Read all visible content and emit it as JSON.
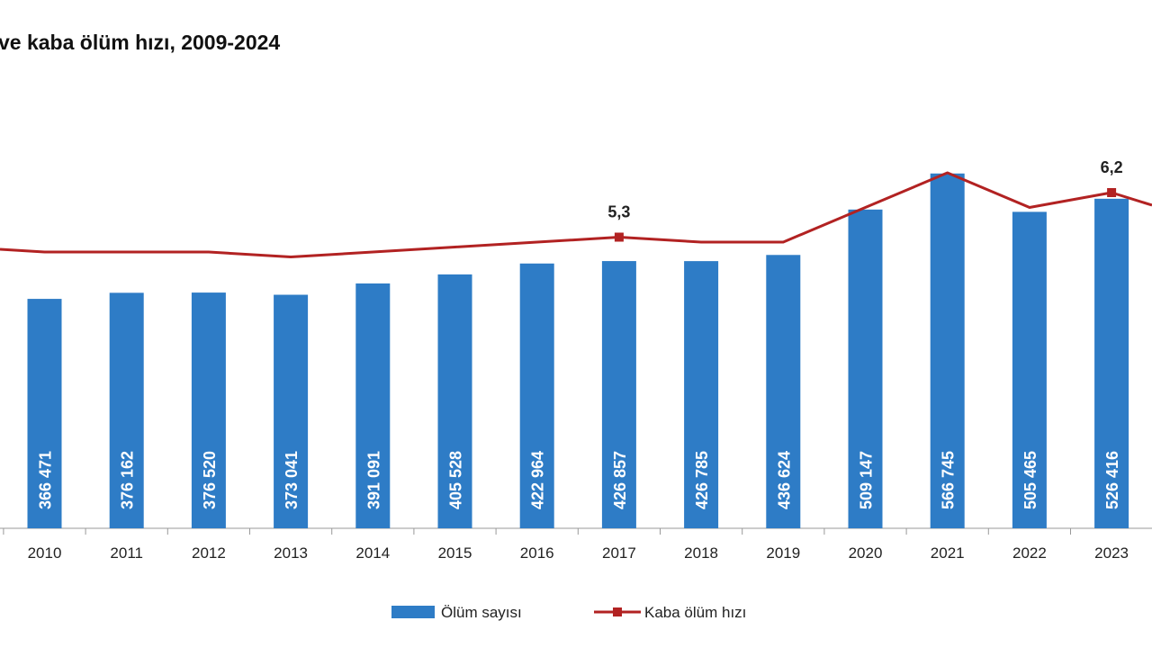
{
  "chart_data": {
    "type": "bar+line",
    "title": "ve kaba ölüm hızı, 2009-2024",
    "categories": [
      "2010",
      "2011",
      "2012",
      "2013",
      "2014",
      "2015",
      "2016",
      "2017",
      "2018",
      "2019",
      "2020",
      "2021",
      "2022",
      "2023"
    ],
    "series": [
      {
        "name": "Ölüm sayısı",
        "type": "bar",
        "color": "#2e7cc6",
        "values": [
          366471,
          376162,
          376520,
          373041,
          391091,
          405528,
          422964,
          426857,
          426785,
          436624,
          509147,
          566745,
          505465,
          526416
        ],
        "labels": [
          "366 471",
          "376 162",
          "376 520",
          "373 041",
          "391 091",
          "405 528",
          "422 964",
          "426 857",
          "426 785",
          "436 624",
          "509 147",
          "566 745",
          "505 465",
          "526 416"
        ]
      },
      {
        "name": "Kaba ölüm hızı",
        "type": "line",
        "color": "#b22222",
        "values": [
          5.0,
          5.0,
          5.0,
          4.9,
          5.0,
          5.1,
          5.2,
          5.3,
          5.2,
          5.2,
          5.9,
          6.6,
          5.9,
          6.2
        ],
        "labels": {
          "2017": "5,3",
          "2023": "6,2"
        }
      }
    ],
    "legend": {
      "placement": "bottom-center"
    },
    "grid": false
  }
}
